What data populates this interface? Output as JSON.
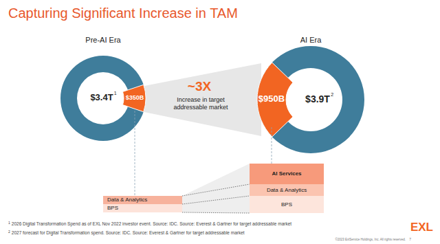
{
  "title": "Capturing Significant Increase in TAM",
  "chart_data": [
    {
      "type": "pie",
      "title": "Pre-AI Era",
      "total": 3400,
      "total_label": "$3.4T",
      "total_footnote": "1",
      "values": [
        350
      ],
      "value_labels": [
        "$350B"
      ],
      "colors": [
        "#f26522"
      ],
      "color": "#3f7d9b",
      "data_labels": true
    },
    {
      "type": "pie",
      "title": "AI Era",
      "total": 3900,
      "total_label": "$3.9T",
      "total_footnote": "2",
      "values": [
        950
      ],
      "value_labels": [
        "$950B"
      ],
      "colors": [
        "#f26522"
      ],
      "color": "#3f7d9b",
      "data_labels": true
    }
  ],
  "annotation": {
    "headline": "~3X",
    "lines": [
      "Increase in target",
      "addressable market"
    ]
  },
  "breakdown": {
    "left": [
      "Data & Analytics",
      "BPS"
    ],
    "right": [
      "AI Services",
      "Data & Analytics",
      "BPS"
    ]
  },
  "footnotes": [
    {
      "mark": "1",
      "text": "2026 Digital Transformation Spend as of EXL Nov 2022 investor event. Source: IDC. Source: Everest & Gartner for target addressable market"
    },
    {
      "mark": "2",
      "text": "2027 forecast for Digital Transformation spend. Source: IDC. Source: Everest & Gartner for target addressable market"
    }
  ],
  "copyright": "©2023 ExlService Holdings, Inc. All rights reserved.",
  "page": "7",
  "logo": "EXL"
}
